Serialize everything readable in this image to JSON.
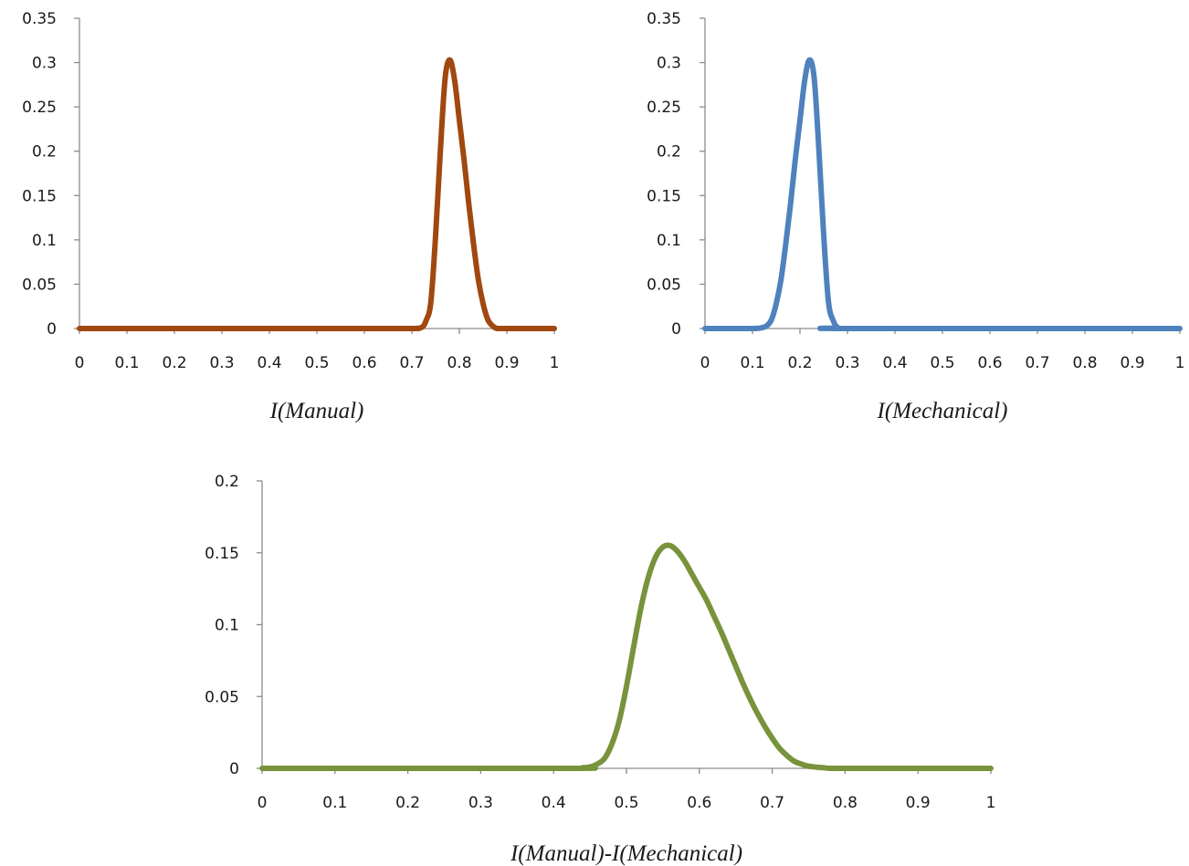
{
  "chart_data": [
    {
      "type": "line",
      "xlabel": "I(Manual)",
      "ylabel": "",
      "title": "",
      "xlim": [
        0,
        1
      ],
      "ylim": [
        0,
        0.35
      ],
      "xticks": [
        "0",
        "0.1",
        "0.2",
        "0.3",
        "0.4",
        "0.5",
        "0.6",
        "0.7",
        "0.8",
        "0.9",
        "1"
      ],
      "yticks": [
        "0",
        "0.05",
        "0.1",
        "0.15",
        "0.2",
        "0.25",
        "0.3",
        "0.35"
      ],
      "grid": false,
      "color": "#A0480F",
      "series": [
        {
          "x": [
            0,
            0.65,
            0.7,
            0.72,
            0.73,
            0.74,
            0.75,
            0.76,
            0.77,
            0.78,
            0.79,
            0.8,
            0.81,
            0.82,
            0.83,
            0.84,
            0.85,
            0.86,
            0.87,
            0.88,
            0.9,
            1
          ],
          "y": [
            0,
            0,
            0,
            0.001,
            0.009,
            0.03,
            0.105,
            0.2,
            0.282,
            0.303,
            0.28,
            0.235,
            0.19,
            0.14,
            0.095,
            0.055,
            0.028,
            0.01,
            0.003,
            0,
            0,
            0
          ]
        }
      ]
    },
    {
      "type": "line",
      "xlabel": "I(Mechanical)",
      "ylabel": "",
      "title": "",
      "xlim": [
        0,
        1
      ],
      "ylim": [
        0,
        0.35
      ],
      "xticks": [
        "0",
        "0.1",
        "0.2",
        "0.3",
        "0.4",
        "0.5",
        "0.6",
        "0.7",
        "0.8",
        "0.9",
        "1"
      ],
      "yticks": [
        "0",
        "0.05",
        "0.1",
        "0.15",
        "0.2",
        "0.25",
        "0.3",
        "0.35"
      ],
      "grid": false,
      "color": "#4F81BD",
      "series": [
        {
          "x": [
            0,
            0.1,
            0.12,
            0.13,
            0.14,
            0.15,
            0.16,
            0.17,
            0.18,
            0.19,
            0.2,
            0.21,
            0.22,
            0.23,
            0.24,
            0.25,
            0.26,
            0.27,
            0.28,
            0.3,
            1
          ],
          "y": [
            0,
            0,
            0.001,
            0.003,
            0.01,
            0.028,
            0.055,
            0.095,
            0.14,
            0.19,
            0.235,
            0.28,
            0.303,
            0.282,
            0.2,
            0.105,
            0.03,
            0.009,
            0.001,
            0,
            0
          ]
        }
      ]
    },
    {
      "type": "line",
      "xlabel": "I(Manual)-I(Mechanical)",
      "ylabel": "",
      "title": "",
      "xlim": [
        0,
        1
      ],
      "ylim": [
        0,
        0.2
      ],
      "xticks": [
        "0",
        "0.1",
        "0.2",
        "0.3",
        "0.4",
        "0.5",
        "0.6",
        "0.7",
        "0.8",
        "0.9",
        "1"
      ],
      "yticks": [
        "0",
        "0.05",
        "0.1",
        "0.15",
        "0.2"
      ],
      "grid": false,
      "color": "#77933C",
      "series": [
        {
          "x": [
            0,
            0.42,
            0.44,
            0.45,
            0.46,
            0.47,
            0.48,
            0.49,
            0.5,
            0.51,
            0.52,
            0.53,
            0.54,
            0.55,
            0.56,
            0.57,
            0.58,
            0.59,
            0.6,
            0.61,
            0.62,
            0.63,
            0.64,
            0.65,
            0.66,
            0.67,
            0.68,
            0.69,
            0.7,
            0.71,
            0.72,
            0.73,
            0.74,
            0.75,
            0.77,
            0.8,
            1
          ],
          "y": [
            0,
            0,
            0.0005,
            0.001,
            0.003,
            0.007,
            0.017,
            0.033,
            0.057,
            0.085,
            0.112,
            0.133,
            0.147,
            0.154,
            0.155,
            0.151,
            0.144,
            0.135,
            0.126,
            0.117,
            0.106,
            0.095,
            0.083,
            0.071,
            0.059,
            0.048,
            0.038,
            0.029,
            0.021,
            0.014,
            0.009,
            0.005,
            0.003,
            0.0015,
            0.0005,
            0,
            0
          ]
        }
      ]
    }
  ]
}
